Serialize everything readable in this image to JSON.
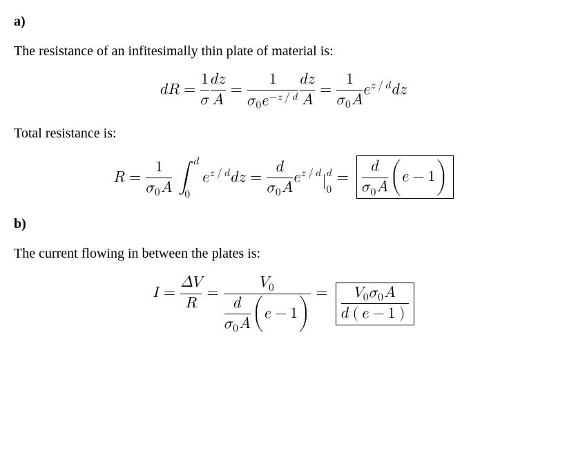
{
  "partA": {
    "label": "a)",
    "text": "The resistance of an infitesimally thin plate of material is:",
    "equation_mathml": "<mrow><mi>d</mi><mi>R</mi><mo>=</mo><mfrac><mn>1</mn><mi>σ</mi></mfrac><mfrac><mrow><mi>d</mi><mi>z</mi></mrow><mi>A</mi></mfrac><mo>=</mo><mfrac><mn>1</mn><mrow><msub><mi>σ</mi><mn>0</mn></msub><msup><mi>e</mi><mrow><mo>−</mo><mi>z</mi><mo>/</mo><mi>d</mi></mrow></msup></mrow></mfrac><mfrac><mrow><mi>d</mi><mi>z</mi></mrow><mi>A</mi></mfrac><mo>=</mo><mfrac><mn>1</mn><mrow><msub><mi>σ</mi><mn>0</mn></msub><mi>A</mi></mrow></mfrac><msup><mi>e</mi><mrow><mi>z</mi><mo>/</mo><mi>d</mi></mrow></msup><mi>d</mi><mi>z</mi></mrow>",
    "text2": "Total resistance is:",
    "equation2_left_mathml": "<mrow><mi>R</mi><mo>=</mo><mfrac><mn>1</mn><mrow><msub><mi>σ</mi><mn>0</mn></msub><mi>A</mi></mrow></mfrac><mspace width='0.2em'></mspace><msubsup><mo>∫</mo><mn>0</mn><mi>d</mi></msubsup><msup><mi>e</mi><mrow><mi>z</mi><mo>/</mo><mi>d</mi></mrow></msup><mi>d</mi><mi>z</mi><mo>=</mo><mfrac><mi>d</mi><mrow><msub><mi>σ</mi><mn>0</mn></msub><mi>A</mi></mrow></mfrac><msup><mi>e</mi><mrow><mi>z</mi><mo>/</mo><mi>d</mi></mrow></msup><msubsup><mo minsize='2.2em' maxsize='2.2em'>|</mo><mn>0</mn><mi>d</mi></msubsup><mo>=</mo></mrow>",
    "equation2_boxed_mathml": "<mrow><mfrac><mi>d</mi><mrow><msub><mi>σ</mi><mn>0</mn></msub><mi>A</mi></mrow></mfrac><mo>(</mo><mi>e</mi><mo>−</mo><mn>1</mn><mo>)</mo></mrow>"
  },
  "partB": {
    "label": "b)",
    "text": "The current flowing in between the plates is:",
    "equation_left_mathml": "<mrow><mi>I</mi><mo>=</mo><mfrac><mrow><mi>Δ</mi><mi>V</mi></mrow><mi>R</mi></mfrac><mo>=</mo><mfrac><msub><mi>V</mi><mn>0</mn></msub><mrow><mstyle displaystyle='true'><mfrac><mi>d</mi><mrow><msub><mi>σ</mi><mn>0</mn></msub><mi>A</mi></mrow></mfrac></mstyle><mo>(</mo><mi>e</mi><mo>−</mo><mn>1</mn><mo>)</mo></mrow></mfrac><mo>=</mo></mrow>",
    "equation_boxed_mathml": "<mrow><mfrac><mrow><msub><mi>V</mi><mn>0</mn></msub><msub><mi>σ</mi><mn>0</mn></msub><mi>A</mi></mrow><mrow><mi>d</mi><mo>(</mo><mi>e</mi><mo>−</mo><mn>1</mn><mo>)</mo></mrow></mfrac></mrow>"
  }
}
